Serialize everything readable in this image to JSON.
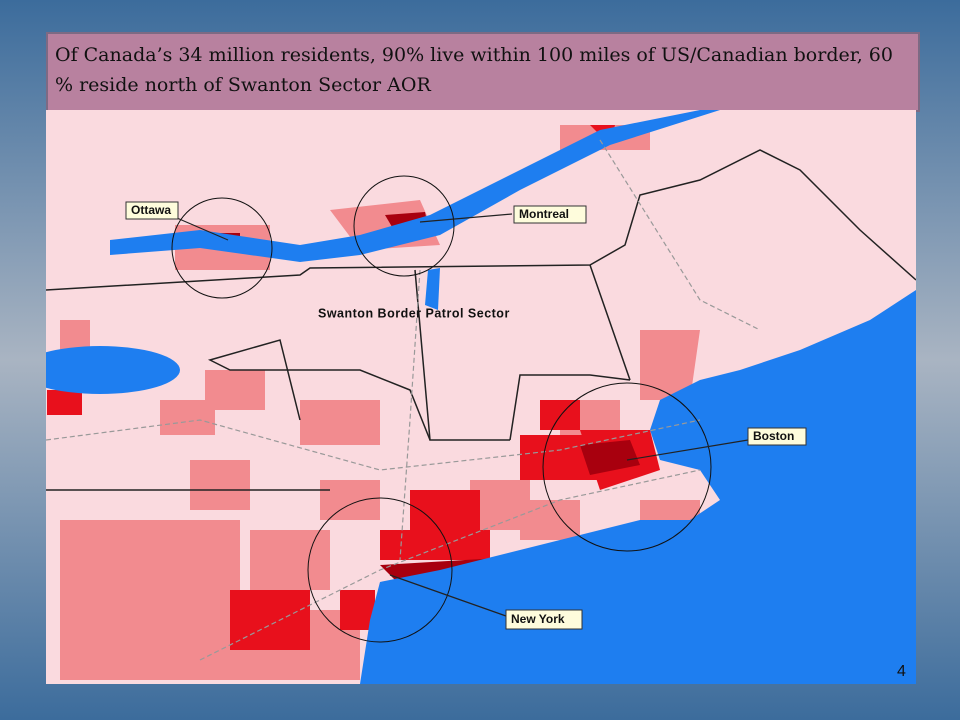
{
  "title": "Of Canada’s 34 million residents, 90% live within 100 miles of US/Canadian border, 60 % reside north of Swanton Sector AOR",
  "map": {
    "labels": {
      "ottawa": "Ottawa",
      "montreal": "Montreal",
      "sector": "Swanton Border Patrol Sector",
      "boston": "Boston",
      "new_york": "New York"
    }
  },
  "page_number": "4"
}
